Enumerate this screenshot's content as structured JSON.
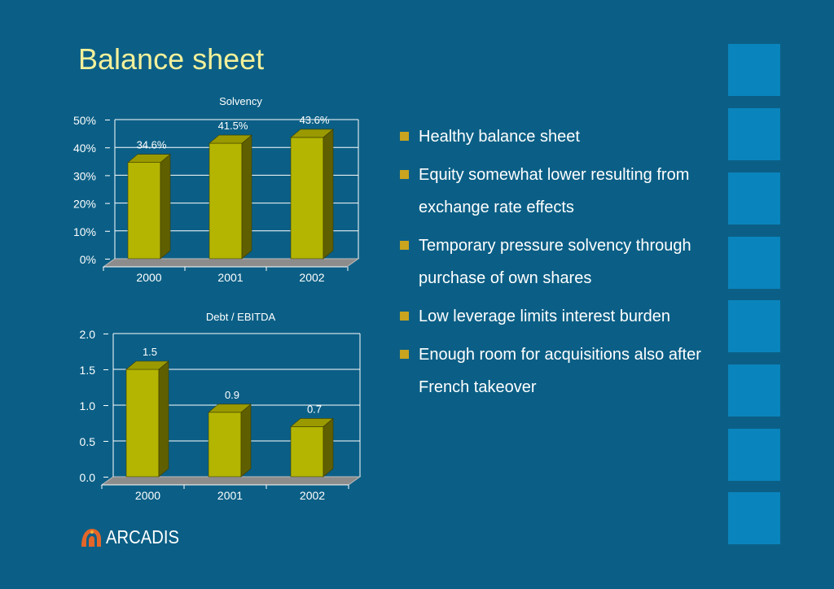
{
  "page": {
    "title": "Balance sheet"
  },
  "colors": {
    "background": "#0b5f86",
    "title": "#f3f09a",
    "bar_front": "#b3b500",
    "bar_side": "#5f5f00",
    "bar_top": "#9a9a00",
    "accent_square": "#0a84bd",
    "bullet": "#c9a41e"
  },
  "bullets": [
    {
      "text": "Healthy balance sheet"
    },
    {
      "text": "Equity somewhat lower resulting from exchange rate effects"
    },
    {
      "text": "Temporary pressure solvency through purchase of own shares"
    },
    {
      "text": "Low leverage limits interest burden"
    },
    {
      "text": "Enough room for acquisitions also after French takeover"
    }
  ],
  "logo": {
    "text": "ARCADIS",
    "icon": "arcadis-logo-icon"
  },
  "chart_data": [
    {
      "type": "bar",
      "title": "Solvency",
      "categories": [
        "2000",
        "2001",
        "2002"
      ],
      "values": [
        34.6,
        41.5,
        43.6
      ],
      "value_labels": [
        "34.6%",
        "41.5%",
        "43.6%"
      ],
      "ylim": [
        0,
        50
      ],
      "yticks": [
        0,
        10,
        20,
        30,
        40,
        50
      ],
      "ytick_labels": [
        "0%",
        "10%",
        "20%",
        "30%",
        "40%",
        "50%"
      ],
      "grid": true,
      "xlabel": "",
      "ylabel": ""
    },
    {
      "type": "bar",
      "title": "Debt / EBITDA",
      "categories": [
        "2000",
        "2001",
        "2002"
      ],
      "values": [
        1.5,
        0.9,
        0.7
      ],
      "value_labels": [
        "1.5",
        "0.9",
        "0.7"
      ],
      "ylim": [
        0,
        2
      ],
      "yticks": [
        0,
        0.5,
        1,
        1.5,
        2
      ],
      "ytick_labels": [
        "0.0",
        "0.5",
        "1.0",
        "1.5",
        "2.0"
      ],
      "grid": true,
      "xlabel": "",
      "ylabel": ""
    }
  ]
}
